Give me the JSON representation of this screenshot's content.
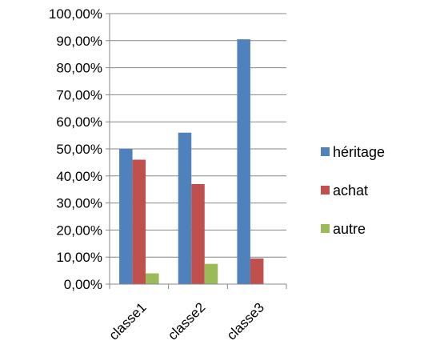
{
  "chart_data": {
    "type": "bar",
    "categories": [
      "classe1",
      "classe2",
      "classe3"
    ],
    "series": [
      {
        "name": "héritage",
        "values": [
          50,
          56,
          90.5
        ],
        "color": "#4F81BD"
      },
      {
        "name": "achat",
        "values": [
          46,
          37,
          9.5
        ],
        "color": "#C0504D"
      },
      {
        "name": "autre",
        "values": [
          4,
          7.5,
          0
        ],
        "color": "#9BBB59"
      }
    ],
    "ylim": [
      0,
      100
    ],
    "y_ticks": [
      "0,00%",
      "10,00%",
      "20,00%",
      "30,00%",
      "40,00%",
      "50,00%",
      "60,00%",
      "70,00%",
      "80,00%",
      "90,00%",
      "100,00%"
    ],
    "y_tick_values": [
      0,
      10,
      20,
      30,
      40,
      50,
      60,
      70,
      80,
      90,
      100
    ],
    "grid": true,
    "legend_position": "right",
    "x_tick_rotation": "-45deg",
    "title": "",
    "xlabel": "",
    "ylabel": ""
  }
}
